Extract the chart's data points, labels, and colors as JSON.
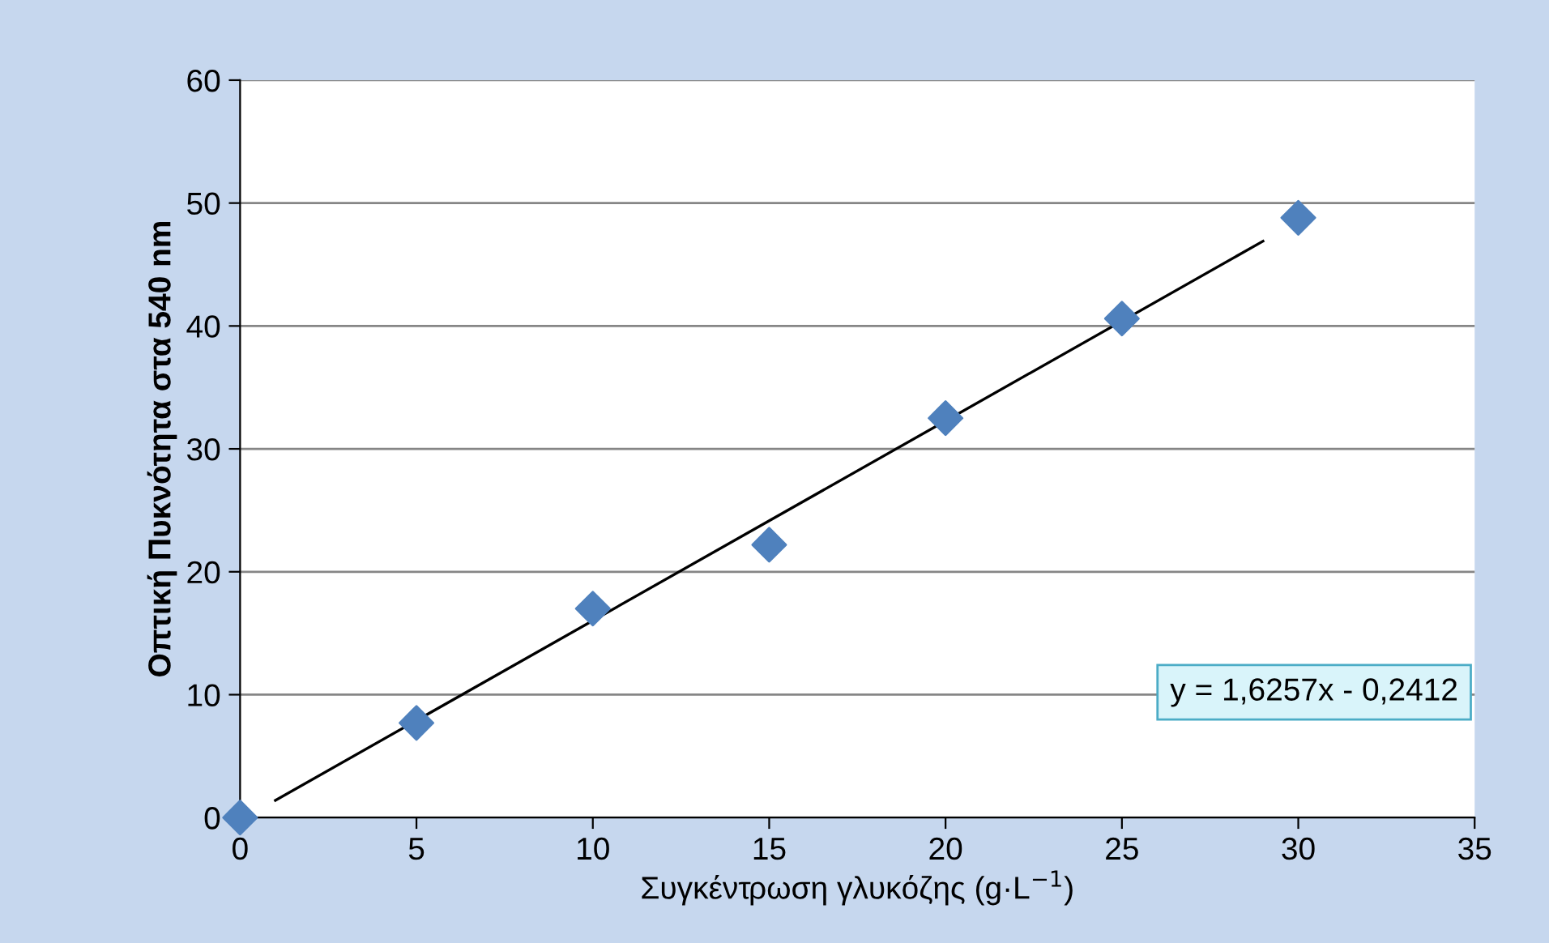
{
  "chart_data": {
    "type": "scatter",
    "xlabel": "Συγκέντρωση γλυκόζης (g·L$^{−1}$)",
    "ylabel": "Οπτική Πυκνότητα στα 540 nm",
    "series": [
      {
        "color": "#4f81bd",
        "marker": "diamond",
        "x": [
          0,
          5,
          10,
          15,
          20,
          25,
          30
        ],
        "values": [
          0,
          7.7,
          17,
          22.2,
          32.5,
          40.6,
          48.8
        ]
      },
      {
        "type": "line",
        "color": "#000000",
        "marker": "none",
        "line_style": "solid",
        "x": [
          1,
          29
        ],
        "values": [
          1.4,
          46.9
        ]
      }
    ],
    "xlim": [
      0,
      35
    ],
    "xticks": [
      0,
      5,
      10,
      15,
      20,
      25,
      30,
      35
    ],
    "ylim": [
      0,
      60
    ],
    "yticks": [
      0,
      10,
      20,
      30,
      40,
      50,
      60
    ],
    "grid": "y",
    "legend": false,
    "annotations": [
      "y = 1,6257x - 0,2412"
    ]
  }
}
